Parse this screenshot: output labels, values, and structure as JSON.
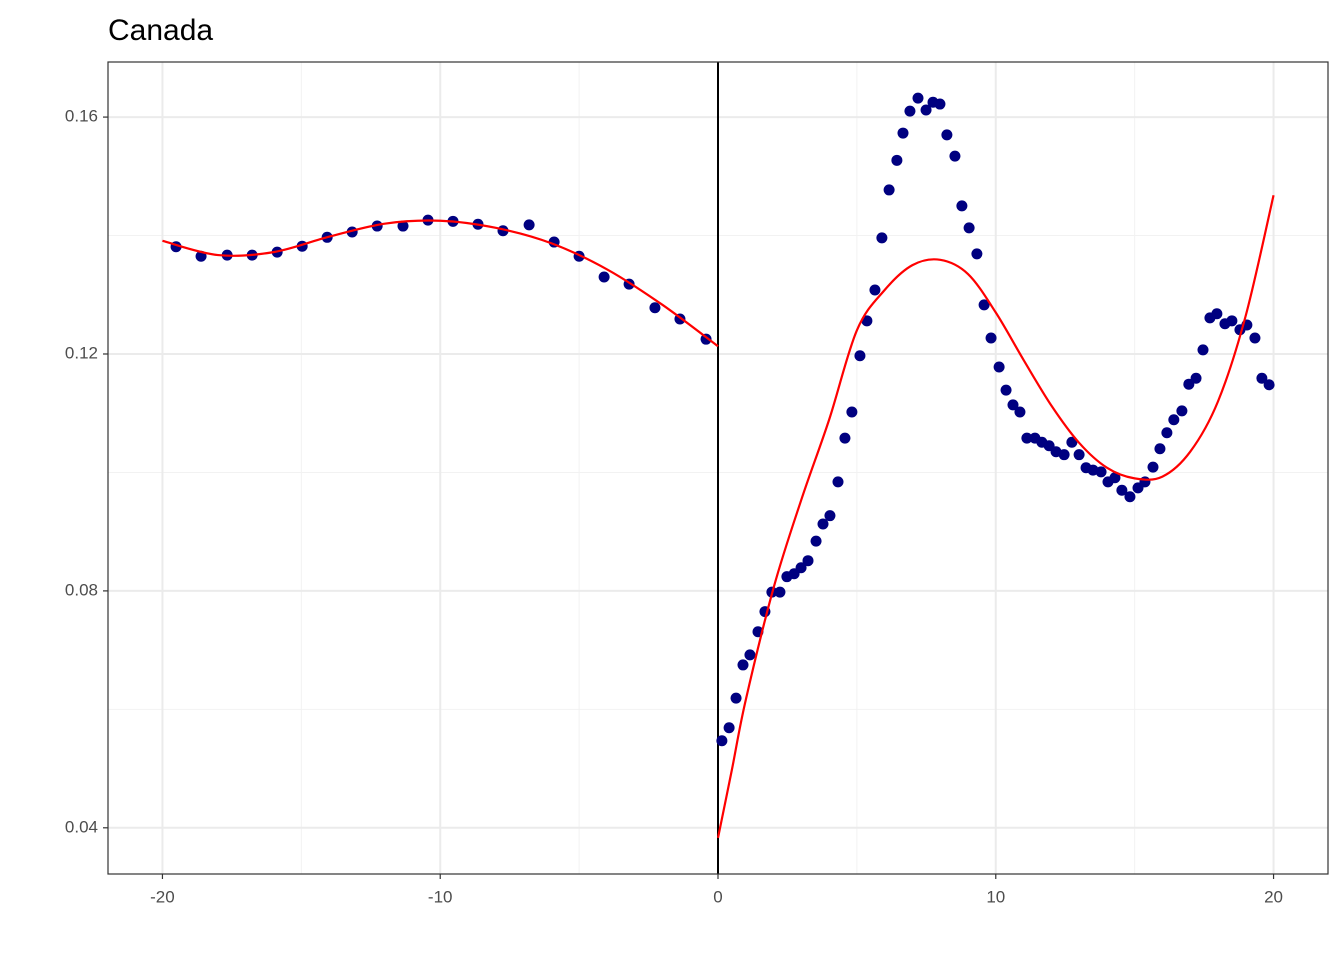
{
  "chart_data": {
    "type": "scatter",
    "title": "Canada",
    "xlim": [
      -21.96,
      21.96
    ],
    "ylim": [
      0.0322,
      0.1693
    ],
    "xticks": [
      -20,
      -10,
      0,
      10,
      20
    ],
    "yticks": [
      0.04,
      0.08,
      0.12,
      0.16
    ],
    "xminorticks": [
      -15,
      -5,
      5,
      15
    ],
    "yminorticks": [
      0.06,
      0.1,
      0.14
    ],
    "grid": true,
    "vline": 0,
    "series": [
      {
        "type": "scatter",
        "color": "#000080",
        "x": [
          -19.51,
          -18.61,
          -17.67,
          -16.77,
          -15.87,
          -14.97,
          -14.07,
          -13.17,
          -12.27,
          -11.34,
          -10.44,
          -9.54,
          -8.64,
          -7.74,
          -6.8,
          -5.9,
          -5.0,
          -4.1,
          -3.2,
          -2.27,
          -1.37,
          -0.43,
          0.14,
          0.4,
          0.65,
          0.9,
          1.15,
          1.44,
          1.69,
          1.94,
          2.23,
          2.48,
          2.74,
          2.99,
          3.24,
          3.53,
          3.78,
          4.03,
          4.32,
          4.57,
          4.82,
          5.11,
          5.36,
          5.65,
          5.9,
          6.16,
          6.44,
          6.66,
          6.91,
          7.2,
          7.49,
          7.74,
          7.99,
          8.24,
          8.53,
          8.78,
          9.04,
          9.32,
          9.58,
          9.83,
          10.12,
          10.37,
          10.62,
          10.87,
          11.12,
          11.41,
          11.66,
          11.92,
          12.17,
          12.46,
          12.74,
          13.0,
          13.25,
          13.5,
          13.79,
          14.04,
          14.29,
          14.54,
          14.83,
          15.12,
          15.37,
          15.66,
          15.91,
          16.16,
          16.41,
          16.7,
          16.95,
          17.21,
          17.46,
          17.71,
          17.96,
          18.25,
          18.5,
          18.79,
          19.04,
          19.33,
          19.58,
          19.84
        ],
        "values": [
          0.1381,
          0.1365,
          0.1367,
          0.1367,
          0.1372,
          0.1382,
          0.1397,
          0.1406,
          0.1416,
          0.1416,
          0.1426,
          0.1424,
          0.1419,
          0.1408,
          0.1418,
          0.1389,
          0.1365,
          0.133,
          0.1318,
          0.1278,
          0.1259,
          0.1225,
          0.0547,
          0.0569,
          0.0619,
          0.0675,
          0.0692,
          0.0731,
          0.0765,
          0.0798,
          0.0798,
          0.0824,
          0.0829,
          0.0839,
          0.0851,
          0.0884,
          0.0913,
          0.0927,
          0.0984,
          0.1058,
          0.1102,
          0.1197,
          0.1256,
          0.1308,
          0.1396,
          0.1477,
          0.1527,
          0.1573,
          0.161,
          0.1632,
          0.1612,
          0.1625,
          0.1622,
          0.157,
          0.1534,
          0.145,
          0.1413,
          0.1369,
          0.1283,
          0.1227,
          0.1178,
          0.1139,
          0.1114,
          0.1102,
          0.1058,
          0.1058,
          0.1051,
          0.1045,
          0.1035,
          0.103,
          0.1051,
          0.103,
          0.1008,
          0.1004,
          0.1001,
          0.0984,
          0.0991,
          0.097,
          0.0959,
          0.0974,
          0.0984,
          0.1009,
          0.104,
          0.1067,
          0.1089,
          0.1104,
          0.1149,
          0.1159,
          0.1207,
          0.1261,
          0.1268,
          0.1251,
          0.1256,
          0.1241,
          0.1249,
          0.1227,
          0.1159,
          0.1148
        ]
      },
      {
        "type": "line",
        "color": "#ff0000",
        "x": [
          -20,
          -18,
          -16,
          -14,
          -12,
          -10,
          -8,
          -6,
          -4,
          -2,
          0
        ],
        "values": [
          0.1391,
          0.1367,
          0.1372,
          0.1398,
          0.142,
          0.1425,
          0.1413,
          0.1387,
          0.1343,
          0.1283,
          0.1213
        ]
      },
      {
        "type": "line",
        "color": "#ff0000",
        "x": [
          0,
          0.5,
          1,
          2,
          3,
          4,
          5,
          6,
          7,
          8,
          9,
          10,
          11,
          12,
          13,
          14,
          15,
          16,
          17,
          18,
          19,
          20
        ],
        "values": [
          0.0383,
          0.0498,
          0.0616,
          0.0805,
          0.0954,
          0.1089,
          0.124,
          0.1308,
          0.135,
          0.1359,
          0.1335,
          0.127,
          0.119,
          0.1113,
          0.105,
          0.1008,
          0.099,
          0.0993,
          0.1035,
          0.112,
          0.1265,
          0.1468
        ]
      }
    ]
  }
}
